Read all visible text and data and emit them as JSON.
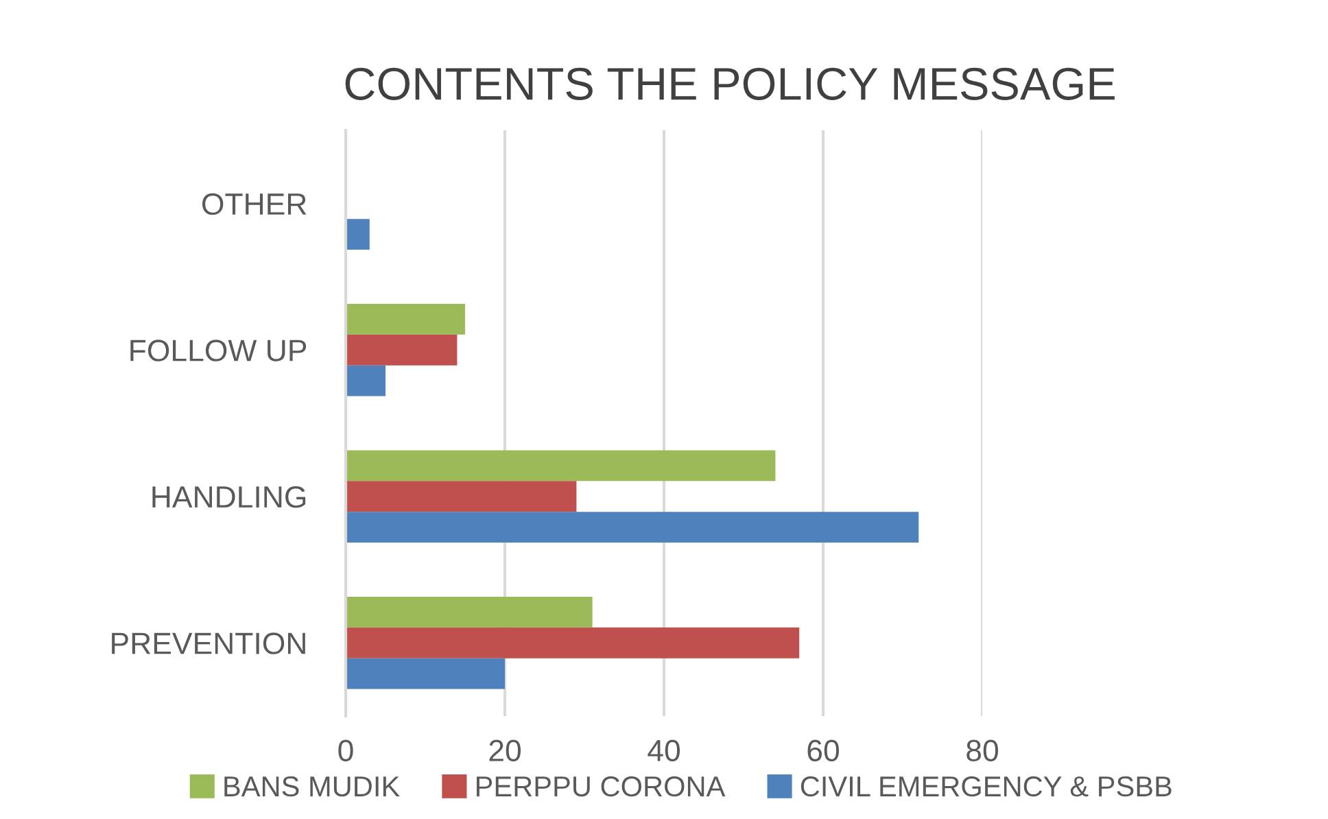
{
  "chart_data": {
    "type": "bar",
    "orientation": "horizontal",
    "title": "CONTENTS THE POLICY MESSAGE",
    "categories": [
      "OTHER",
      "FOLLOW UP",
      "HANDLING",
      "PREVENTION"
    ],
    "series": [
      {
        "name": "BANS MUDIK",
        "color": "#9bbb59",
        "values": [
          0,
          15,
          54,
          31
        ]
      },
      {
        "name": "PERPPU CORONA",
        "color": "#c0504d",
        "values": [
          0,
          14,
          29,
          57
        ]
      },
      {
        "name": "CIVIL EMERGENCY & PSBB",
        "color": "#4f81bd",
        "values": [
          3,
          5,
          72,
          20
        ]
      }
    ],
    "xlim": [
      0,
      80
    ],
    "xticks": [
      0,
      20,
      40,
      60,
      80
    ],
    "grid": "x",
    "legend": "bottom"
  }
}
